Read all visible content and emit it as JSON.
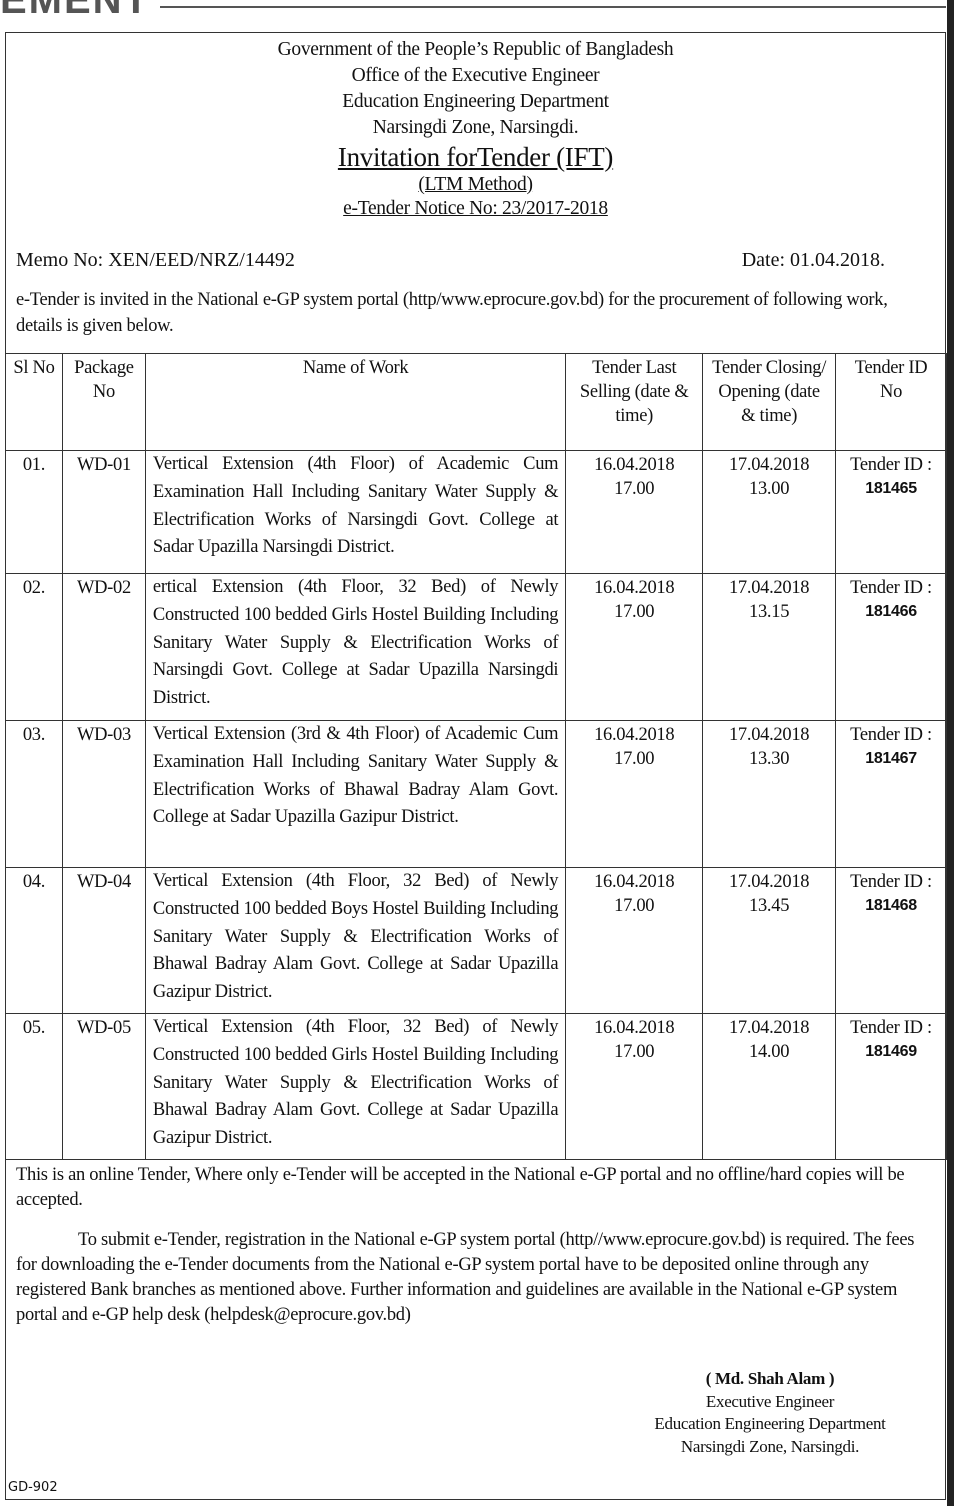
{
  "banner": "EMENT",
  "header": {
    "line1": "Government of the People’s Republic of Bangladesh",
    "line2": "Office of the Executive Engineer",
    "line3": "Education Engineering Department",
    "line4": "Narsingdi Zone, Narsingdi.",
    "title": "Invitation forTender (IFT)",
    "method": "(LTM Method)",
    "notice": "e-Tender Notice No: 23/2017-2018"
  },
  "memo": "Memo No: XEN/EED/NRZ/14492",
  "date": "Date: 01.04.2018.",
  "intro": "e-Tender is invited in the National e-GP system portal (http/www.eprocure.gov.bd) for the procurement of following work, details is given below.",
  "table": {
    "headers": [
      "Sl No",
      "Package No",
      "Name of Work",
      "Tender Last Selling (date & time)",
      "Tender Closing/ Opening (date & time)",
      "Tender ID No"
    ],
    "rows": [
      {
        "sl": "01.",
        "pkg": "WD-01",
        "work": "Vertical Extension (4th Floor) of Academic Cum Examination Hall Including Sanitary Water Supply & Electrification Works of Narsingdi Govt. College at Sadar Upazilla Narsingdi District.",
        "sell_date": "16.04.2018",
        "sell_time": "17.00",
        "close_date": "17.04.2018",
        "close_time": "13.00",
        "id_label": "Tender ID :",
        "id": "181465"
      },
      {
        "sl": "02.",
        "pkg": "WD-02",
        "work": "ertical Extension (4th Floor, 32 Bed) of Newly Constructed 100 bedded Girls Hostel Building Including Sanitary Water Supply & Electrification Works of Narsingdi Govt. College at Sadar Upazilla Narsingdi District.",
        "sell_date": "16.04.2018",
        "sell_time": "17.00",
        "close_date": "17.04.2018",
        "close_time": "13.15",
        "id_label": "Tender ID :",
        "id": "181466"
      },
      {
        "sl": "03.",
        "pkg": "WD-03",
        "work": "Vertical Extension (3rd & 4th Floor) of Academic Cum Examination Hall Including Sanitary Water Supply & Electrification Works of Bhawal Badray Alam Govt. College at Sadar Upazilla Gazipur District.",
        "sell_date": "16.04.2018",
        "sell_time": "17.00",
        "close_date": "17.04.2018",
        "close_time": "13.30",
        "id_label": "Tender ID :",
        "id": "181467"
      },
      {
        "sl": "04.",
        "pkg": "WD-04",
        "work": "Vertical Extension (4th Floor, 32 Bed) of Newly Constructed 100 bedded Boys Hostel Building Including Sanitary Water Supply & Electrification Works of Bhawal Badray Alam Govt. College at Sadar Upazilla Gazipur District.",
        "sell_date": "16.04.2018",
        "sell_time": "17.00",
        "close_date": "17.04.2018",
        "close_time": "13.45",
        "id_label": "Tender ID :",
        "id": "181468"
      },
      {
        "sl": "05.",
        "pkg": "WD-05",
        "work": "Vertical Extension (4th Floor, 32 Bed) of Newly Constructed 100 bedded Girls Hostel Building Including Sanitary Water Supply & Electrification Works of Bhawal Badray Alam Govt. College at Sadar Upazilla Gazipur District.",
        "sell_date": "16.04.2018",
        "sell_time": "17.00",
        "close_date": "17.04.2018",
        "close_time": "14.00",
        "id_label": "Tender ID :",
        "id": "181469"
      }
    ]
  },
  "note": "This is an online Tender, Where only e-Tender will be accepted in the National e-GP portal and no offline/hard copies will be accepted.",
  "para2": "To submit e-Tender, registration in the National e-GP system portal (http//www.eprocure.gov.bd) is required. The fees for downloading the e-Tender documents from the National e-GP system portal have to be deposited online through any registered Bank branches as mentioned above. Further information and guidelines are available in the National e-GP system portal and e-GP help desk (helpdesk@eprocure.gov.bd)",
  "signature": {
    "name": "( Md. Shah Alam )",
    "title": "Executive Engineer",
    "dept": "Education Engineering Department",
    "zone": "Narsingdi Zone, Narsingdi."
  },
  "code": "GD-902"
}
